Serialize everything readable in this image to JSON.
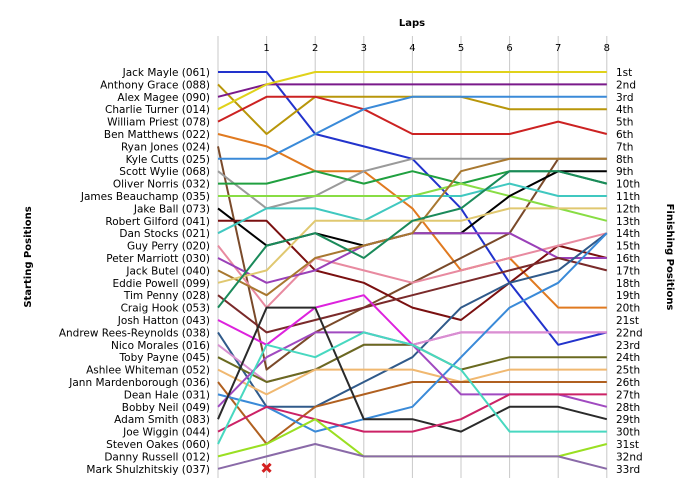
{
  "chart_data": {
    "type": "line",
    "title": "",
    "xlabel": "Laps",
    "ylabel_left": "Starting Positions",
    "ylabel_right": "Finishing Positions",
    "x": [
      0,
      1,
      2,
      3,
      4,
      5,
      6,
      7,
      8
    ],
    "x_tick_labels": [
      "1",
      "2",
      "3",
      "4",
      "5",
      "6",
      "7",
      "8"
    ],
    "grid": true,
    "starting_labels": [
      "Jack Mayle (061)",
      "Anthony Grace (088)",
      "Alex Magee (090)",
      "Charlie Turner (014)",
      "William Priest (078)",
      "Ben Matthews (022)",
      "Ryan Jones (024)",
      "Kyle Cutts (025)",
      "Scott Wylie (068)",
      "Oliver Norris (032)",
      "James Beauchamp (035)",
      "Jake Ball (073)",
      "Robert Gilford (041)",
      "Dan Stocks (021)",
      "Guy Perry (020)",
      "Peter Marriott (030)",
      "Jack Butel (040)",
      "Eddie Powell (099)",
      "Tim Penny (028)",
      "Craig Hook (053)",
      "Josh Hatton (043)",
      "Andrew Rees-Reynolds (038)",
      "Nico Morales (016)",
      "Toby Payne (045)",
      "Ashlee Whiteman (052)",
      "Jann Mardenborough (036)",
      "Dean Hale (031)",
      "Bobby Neil (049)",
      "Adam Smith (083)",
      "Joe Wiggin (044)",
      "Steven Oakes (060)",
      "Danny Russell (012)",
      "Mark Shulzhitskiy (037)"
    ],
    "finishing_labels": [
      "1st",
      "2nd",
      "3rd",
      "4th",
      "5th",
      "6th",
      "7th",
      "8th",
      "9th",
      "10th",
      "11th",
      "12th",
      "13th",
      "14th",
      "15th",
      "16th",
      "17th",
      "18th",
      "19th",
      "20th",
      "21st",
      "22nd",
      "23rd",
      "24th",
      "25th",
      "26th",
      "27th",
      "28th",
      "29th",
      "30th",
      "31st",
      "32nd",
      "33rd"
    ],
    "retired_marker": {
      "driver": "Mark Shulzhitskiy (037)",
      "lap": 1,
      "color": "#d42020"
    },
    "series": [
      {
        "start": "Jack Mayle (061)",
        "color": "#2233cc",
        "positions": [
          1,
          1,
          6,
          7,
          8,
          12,
          18,
          23,
          22
        ]
      },
      {
        "start": "Anthony Grace (088)",
        "color": "#b8960a",
        "positions": [
          2,
          6,
          3,
          3,
          3,
          3,
          4,
          4,
          4
        ]
      },
      {
        "start": "Alex Magee (090)",
        "color": "#7a1a8a",
        "positions": [
          3,
          2,
          2,
          2,
          2,
          2,
          2,
          2,
          2
        ]
      },
      {
        "start": "Charlie Turner (014)",
        "color": "#e0d21a",
        "positions": [
          4,
          2,
          1,
          1,
          1,
          1,
          1,
          1,
          1
        ]
      },
      {
        "start": "William Priest (078)",
        "color": "#cc2222",
        "positions": [
          5,
          3,
          3,
          4,
          6,
          6,
          6,
          5,
          6
        ]
      },
      {
        "start": "Ben Matthews (022)",
        "color": "#e07a20",
        "positions": [
          6,
          7,
          9,
          9,
          12,
          17,
          16,
          20,
          20
        ]
      },
      {
        "start": "Ryan Jones (024)",
        "color": "#7a4a2a",
        "positions": [
          7,
          25,
          22,
          20,
          18,
          16,
          14,
          8,
          8
        ]
      },
      {
        "start": "Kyle Cutts (025)",
        "color": "#3a8ad8",
        "positions": [
          8,
          8,
          6,
          4,
          3,
          3,
          3,
          3,
          3
        ]
      },
      {
        "start": "Scott Wylie (068)",
        "color": "#9a9a9a",
        "positions": [
          9,
          12,
          11,
          9,
          8,
          8,
          8,
          8,
          8
        ]
      },
      {
        "start": "Oliver Norris (032)",
        "color": "#20a040",
        "positions": [
          10,
          10,
          9,
          10,
          9,
          10,
          9,
          9,
          10
        ]
      },
      {
        "start": "James Beauchamp (035)",
        "color": "#88dd44",
        "positions": [
          11,
          11,
          11,
          11,
          11,
          10,
          11,
          12,
          13
        ]
      },
      {
        "start": "Jake Ball (073)",
        "color": "#000000",
        "positions": [
          12,
          15,
          14,
          15,
          14,
          14,
          11,
          9,
          9
        ]
      },
      {
        "start": "Robert Gilford (041)",
        "color": "#7a1010",
        "positions": [
          13,
          13,
          17,
          18,
          20,
          21,
          18,
          15,
          16
        ]
      },
      {
        "start": "Dan Stocks (021)",
        "color": "#40c8c0",
        "positions": [
          14,
          12,
          12,
          13,
          11,
          11,
          10,
          11,
          11
        ]
      },
      {
        "start": "Guy Perry (020)",
        "color": "#e88aa0",
        "positions": [
          15,
          20,
          16,
          17,
          18,
          17,
          16,
          15,
          14
        ]
      },
      {
        "start": "Peter Marriott (030)",
        "color": "#9a40b8",
        "positions": [
          16,
          18,
          17,
          15,
          14,
          14,
          14,
          16,
          16
        ]
      },
      {
        "start": "Jack Butel (040)",
        "color": "#a87830",
        "positions": [
          17,
          19,
          16,
          15,
          14,
          9,
          8,
          8,
          8
        ]
      },
      {
        "start": "Eddie Powell (099)",
        "color": "#e0c870",
        "positions": [
          18,
          17,
          13,
          13,
          13,
          13,
          12,
          12,
          12
        ]
      },
      {
        "start": "Tim Penny (028)",
        "color": "#7a2a2a",
        "positions": [
          19,
          22,
          21,
          20,
          19,
          18,
          17,
          16,
          17
        ]
      },
      {
        "start": "Craig Hook (053)",
        "color": "#1a8a5a",
        "positions": [
          20,
          15,
          14,
          16,
          13,
          12,
          9,
          9,
          10
        ]
      },
      {
        "start": "Josh Hatton (043)",
        "color": "#dd22dd",
        "positions": [
          21,
          23,
          20,
          19,
          23,
          22,
          22,
          22,
          22
        ]
      },
      {
        "start": "Andrew Rees-Reynolds (038)",
        "color": "#305a8a",
        "positions": [
          22,
          28,
          28,
          26,
          24,
          20,
          18,
          17,
          14
        ]
      },
      {
        "start": "Nico Morales (016)",
        "color": "#d890d0",
        "positions": [
          23,
          26,
          25,
          23,
          23,
          22,
          22,
          22,
          22
        ]
      },
      {
        "start": "Toby Payne (045)",
        "color": "#6a6a20",
        "positions": [
          24,
          26,
          25,
          23,
          23,
          25,
          24,
          24,
          24
        ]
      },
      {
        "start": "Ashlee Whiteman (052)",
        "color": "#f0b870",
        "positions": [
          25,
          27,
          25,
          25,
          25,
          26,
          25,
          25,
          25
        ]
      },
      {
        "start": "Jann Mardenborough (036)",
        "color": "#b06020",
        "positions": [
          26,
          31,
          28,
          27,
          26,
          26,
          26,
          26,
          26
        ]
      },
      {
        "start": "Dean Hale (031)",
        "color": "#3a8ad8",
        "positions": [
          27,
          28,
          30,
          29,
          28,
          24,
          20,
          18,
          14
        ]
      },
      {
        "start": "Bobby Neil (049)",
        "color": "#a04ac0",
        "positions": [
          28,
          24,
          22,
          22,
          23,
          27,
          27,
          27,
          28
        ]
      },
      {
        "start": "Adam Smith (083)",
        "color": "#2a2a2a",
        "positions": [
          29,
          20,
          20,
          29,
          29,
          30,
          28,
          28,
          29
        ]
      },
      {
        "start": "Joe Wiggin (044)",
        "color": "#cc2266",
        "positions": [
          30,
          28,
          29,
          30,
          30,
          29,
          27,
          27,
          27
        ]
      },
      {
        "start": "Steven Oakes (060)",
        "color": "#48d8c0",
        "positions": [
          31,
          23,
          24,
          22,
          23,
          25,
          30,
          30,
          30
        ]
      },
      {
        "start": "Danny Russell (012)",
        "color": "#9adf22",
        "positions": [
          32,
          31,
          29,
          32,
          32,
          32,
          32,
          32,
          31
        ]
      },
      {
        "start": "Mark Shulzhitskiy (037)",
        "color": "#8a6aa8",
        "positions": [
          33,
          32,
          31,
          32,
          32,
          32,
          32,
          32,
          33
        ]
      }
    ]
  }
}
